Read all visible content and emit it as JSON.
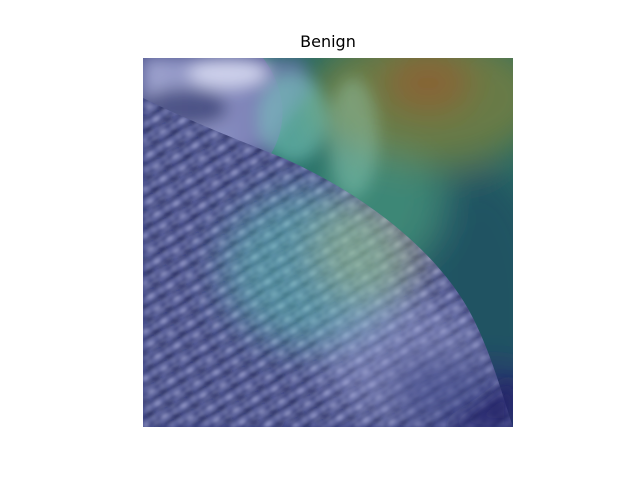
{
  "figure": {
    "title": "Benign"
  },
  "image": {
    "description_icon": "mammogram-heatmap-overlay",
    "colors": {
      "base_dark": "#2a2f6e",
      "tissue_light": "#c9c9f0",
      "heat_green": "#1f6f62",
      "heat_teal": "#3e9c8c",
      "heat_yellow": "#b9b255",
      "heat_orange": "#9a6a2e",
      "heat_cyan": "#7fd3c4"
    }
  }
}
